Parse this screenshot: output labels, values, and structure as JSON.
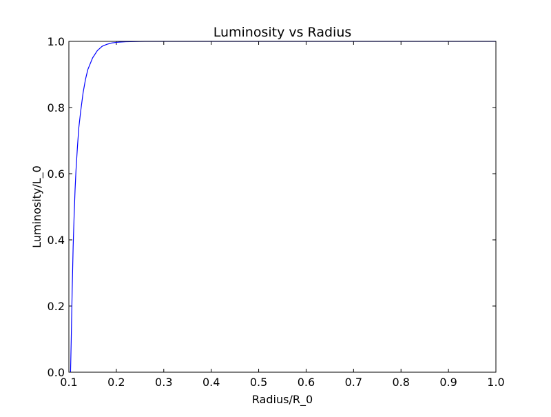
{
  "chart_data": {
    "type": "line",
    "title": "Luminosity vs Radius",
    "xlabel": "Radius/R_0",
    "ylabel": "Luminosity/L_0",
    "xlim": [
      0.1,
      1.0
    ],
    "ylim": [
      0.0,
      1.0
    ],
    "xticks": [
      "0.1",
      "0.2",
      "0.3",
      "0.4",
      "0.5",
      "0.6",
      "0.7",
      "0.8",
      "0.9",
      "1.0"
    ],
    "yticks": [
      "0.0",
      "0.2",
      "0.4",
      "0.6",
      "0.8",
      "1.0"
    ],
    "grid": false,
    "series": [
      {
        "color": "#0000ff",
        "x": [
          0.1035,
          0.105,
          0.107,
          0.109,
          0.111,
          0.113,
          0.115,
          0.118,
          0.121,
          0.125,
          0.13,
          0.135,
          0.14,
          0.15,
          0.16,
          0.17,
          0.18,
          0.19,
          0.2,
          0.22,
          0.24,
          0.26,
          0.3,
          0.4,
          0.5,
          0.6,
          0.7,
          0.8,
          0.9,
          1.0
        ],
        "y": [
          0.0,
          0.1,
          0.25,
          0.38,
          0.47,
          0.55,
          0.61,
          0.68,
          0.74,
          0.79,
          0.845,
          0.885,
          0.915,
          0.95,
          0.972,
          0.985,
          0.991,
          0.995,
          0.997,
          0.999,
          0.9995,
          1.0,
          1.0,
          1.0,
          1.0,
          1.0,
          1.0,
          1.0,
          1.0,
          1.0
        ]
      }
    ]
  }
}
